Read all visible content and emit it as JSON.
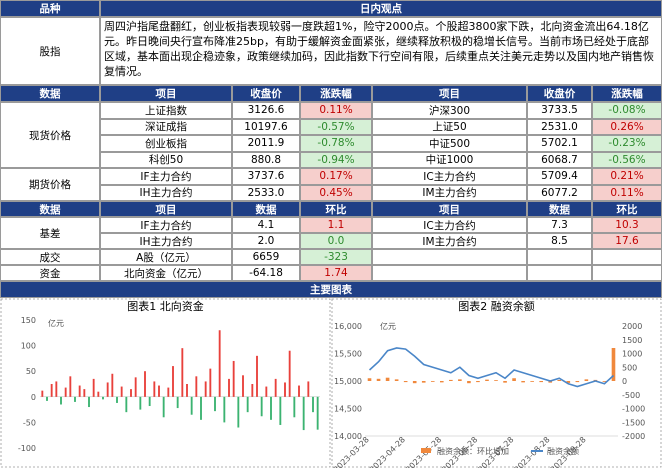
{
  "header": {
    "col1": "品种",
    "col2": "日内观点"
  },
  "view": {
    "label": "股指",
    "text": "周四沪指尾盘翻红，创业板指表现较弱一度跌超1%，险守2000点。个股超3800家下跌，北向资金流出64.18亿元。昨日晚间央行宣布降准25bp，有助于缓解资金面紧张，继续释放积极的稳增长信号。当前市场已经处于底部区域，基本面出现企稳迹象，政策继续加码，因此指数下行空间有限，后续重点关注美元走势以及国内地产销售恢复情况。"
  },
  "quotes": {
    "header": [
      "数据",
      "项目",
      "收盘价",
      "涨跌幅",
      "项目",
      "收盘价",
      "涨跌幅"
    ],
    "groups": [
      {
        "label": "现货价格",
        "rows": [
          [
            "上证指数",
            "3126.6",
            "0.11%",
            "沪深300",
            "3733.5",
            "-0.08%"
          ],
          [
            "深证成指",
            "10197.6",
            "-0.57%",
            "上证50",
            "2531.0",
            "0.26%"
          ],
          [
            "创业板指",
            "2011.9",
            "-0.78%",
            "中证500",
            "5702.1",
            "-0.23%"
          ],
          [
            "科创50",
            "880.8",
            "-0.94%",
            "中证1000",
            "6068.7",
            "-0.56%"
          ]
        ]
      },
      {
        "label": "期货价格",
        "rows": [
          [
            "IF主力合约",
            "3737.6",
            "0.17%",
            "IC主力合约",
            "5709.4",
            "0.21%"
          ],
          [
            "IH主力合约",
            "2533.0",
            "0.45%",
            "IM主力合约",
            "6077.2",
            "0.11%"
          ]
        ]
      }
    ]
  },
  "basis": {
    "header": [
      "数据",
      "项目",
      "数据",
      "环比",
      "项目",
      "数据",
      "环比"
    ],
    "groups": [
      {
        "label": "基差",
        "rows": [
          [
            "IF主力合约",
            "4.1",
            "1.1",
            "IC主力合约",
            "7.3",
            "10.3"
          ],
          [
            "IH主力合约",
            "2.0",
            "0.0",
            "IM主力合约",
            "8.5",
            "17.6"
          ]
        ]
      },
      {
        "label": "成交",
        "rows": [
          [
            "A股（亿元）",
            "6659",
            "-323"
          ]
        ]
      },
      {
        "label": "资金",
        "rows": [
          [
            "北向资金（亿元）",
            "-64.18",
            "1.74"
          ]
        ]
      }
    ]
  },
  "charts_header": "主要图表",
  "chart_data": [
    {
      "type": "bar",
      "title": "图表1  北向资金",
      "y_label": "亿元",
      "color": "#e8413c",
      "negative_color": "#3cb371",
      "grid": false,
      "categories": [
        null,
        null,
        null,
        null,
        null,
        null,
        null,
        null,
        null,
        null,
        null,
        null,
        null,
        null,
        null,
        null,
        null,
        null,
        null,
        null,
        null,
        null,
        null,
        null,
        null,
        null,
        null,
        null,
        null,
        null,
        null,
        null,
        null,
        null,
        null,
        null,
        null,
        null,
        null,
        null,
        null,
        null,
        null,
        null,
        null,
        null,
        null,
        null,
        null,
        null,
        null,
        null,
        null,
        null,
        null,
        null,
        null,
        null,
        null,
        null
      ],
      "values": [
        12,
        -8,
        25,
        30,
        -15,
        18,
        40,
        -10,
        22,
        15,
        -20,
        35,
        10,
        -5,
        28,
        45,
        -12,
        20,
        -30,
        15,
        38,
        -25,
        50,
        -18,
        30,
        22,
        -40,
        18,
        60,
        -22,
        95,
        25,
        -35,
        40,
        -45,
        30,
        55,
        -28,
        130,
        -50,
        35,
        70,
        -60,
        42,
        -30,
        25,
        80,
        -38,
        20,
        -45,
        35,
        -55,
        28,
        90,
        -40,
        22,
        -65,
        30,
        -30,
        -64.18
      ],
      "ylim": [
        -100,
        150
      ],
      "yticks": [
        -100,
        -50,
        0,
        50,
        100,
        150
      ]
    },
    {
      "type": "combo",
      "title": "图表2  融资余额",
      "y_label": "亿元",
      "grid": false,
      "categories": [
        "2023-03-28",
        null,
        null,
        null,
        "2023-04-28",
        null,
        null,
        null,
        "2023-05-28",
        null,
        null,
        null,
        "2023-06-28",
        null,
        null,
        null,
        "2023-07-28",
        null,
        null,
        null,
        "2023-08-28",
        null,
        null,
        null,
        "2023-09-28",
        null,
        null,
        null
      ],
      "series": [
        {
          "name": "融资余额：环比增加",
          "kind": "bar",
          "axis": "y2",
          "color": "#f0883c",
          "values": [
            100,
            80,
            120,
            60,
            -40,
            -80,
            -60,
            -30,
            -50,
            40,
            60,
            -80,
            -40,
            50,
            30,
            -60,
            100,
            -50,
            -30,
            -40,
            -60,
            40,
            -70,
            -40,
            60,
            40,
            -30,
            1200
          ]
        },
        {
          "name": "融资余额",
          "kind": "line",
          "color": "#4a86c8",
          "values": [
            15200,
            15350,
            15550,
            15600,
            15580,
            15450,
            15300,
            15250,
            15200,
            15150,
            15250,
            15100,
            15050,
            15100,
            15150,
            15050,
            15200,
            15150,
            15100,
            15050,
            15000,
            15050,
            14950,
            14900,
            14950,
            15000,
            14950,
            15100
          ]
        }
      ],
      "ylim": [
        14000,
        16000
      ],
      "yticks": [
        {
          "value": 14000,
          "label": "14,000"
        },
        {
          "value": 14500,
          "label": "14,500"
        },
        {
          "value": 15000,
          "label": "15,000"
        },
        {
          "value": 15500,
          "label": "15,500"
        },
        {
          "value": 16000,
          "label": "16,000"
        }
      ],
      "y2lim": [
        -2000,
        2000
      ],
      "y2ticks": [
        -2000,
        -1500,
        -1000,
        -500,
        0,
        500,
        1000,
        1500,
        2000
      ]
    }
  ]
}
